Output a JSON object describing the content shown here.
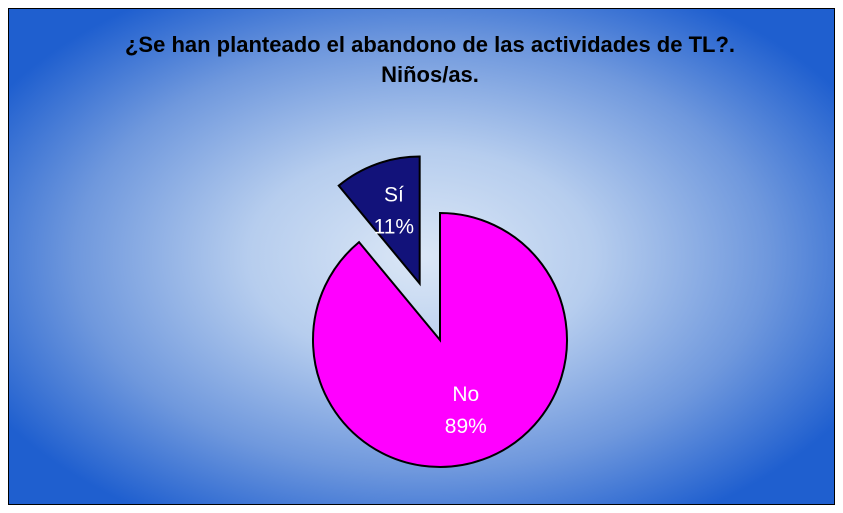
{
  "chart_data": {
    "type": "pie",
    "title": "¿Se han planteado el abandono de las actividades de TL?. Niños/as.",
    "categories": [
      "Sí",
      "No"
    ],
    "values": [
      11,
      89
    ],
    "value_labels": [
      "11%",
      "89%"
    ],
    "colors": [
      "#12127a",
      "#ff00ff"
    ]
  }
}
